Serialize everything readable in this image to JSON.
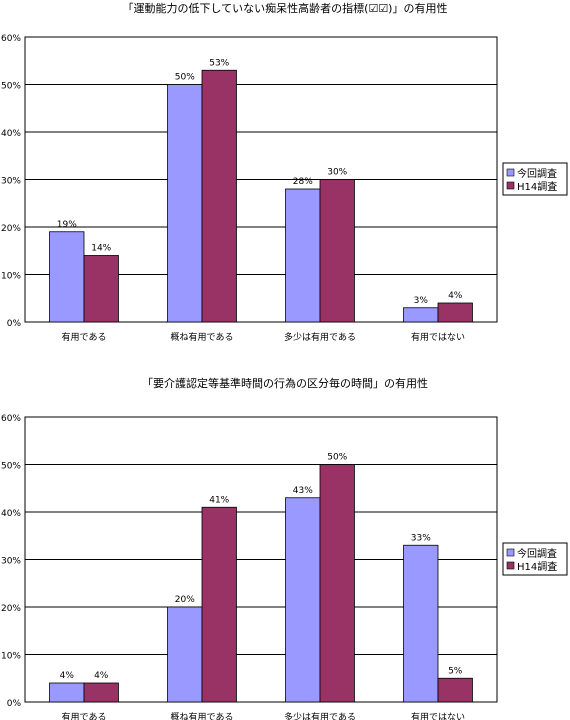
{
  "colors": {
    "series_a": "#9999ff",
    "series_b": "#993366",
    "grid": "#000000",
    "plot_bg": "#ffffff"
  },
  "chart_data": [
    {
      "type": "bar",
      "title": "「運動能力の低下していない痴呆性高齢者の指標(☑☑)」の有用性",
      "categories": [
        "有用である",
        "概ね有用である",
        "多少は有用である",
        "有用ではない"
      ],
      "series": [
        {
          "name": "今回調査",
          "values": [
            19,
            50,
            28,
            3
          ],
          "labels": [
            "19%",
            "50%",
            "28%",
            "3%"
          ]
        },
        {
          "name": "H14調査",
          "values": [
            14,
            53,
            30,
            4
          ],
          "labels": [
            "14%",
            "53%",
            "30%",
            "4%"
          ]
        }
      ],
      "yticks": [
        "0%",
        "10%",
        "20%",
        "30%",
        "40%",
        "50%",
        "60%"
      ],
      "ylim": [
        0,
        60
      ],
      "grid": true,
      "legend": "right"
    },
    {
      "type": "bar",
      "title": "「要介護認定等基準時間の行為の区分毎の時間」の有用性",
      "categories": [
        "有用である",
        "概ね有用である",
        "多少は有用である",
        "有用ではない"
      ],
      "series": [
        {
          "name": "今回調査",
          "values": [
            4,
            20,
            43,
            33
          ],
          "labels": [
            "4%",
            "20%",
            "43%",
            "33%"
          ]
        },
        {
          "name": "H14調査",
          "values": [
            4,
            41,
            50,
            5
          ],
          "labels": [
            "4%",
            "41%",
            "50%",
            "5%"
          ]
        }
      ],
      "yticks": [
        "0%",
        "10%",
        "20%",
        "30%",
        "40%",
        "50%",
        "60%"
      ],
      "ylim": [
        0,
        60
      ],
      "grid": true,
      "legend": "right"
    }
  ]
}
